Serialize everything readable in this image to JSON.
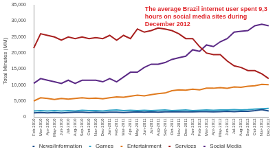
{
  "chart_data": {
    "type": "line",
    "annotation": "The average Brazil internet user spent 9,3 hours on social media sites during December 2012",
    "y_label": "Total Minutes (MM)",
    "categories": [
      "Feb-2010",
      "Mar-2010",
      "Apr-2010",
      "May-2010",
      "Jun-2010",
      "Jul-2010",
      "Aug-2010",
      "Sep-2010",
      "Oct-2010",
      "Nov-2010",
      "Dec-2010",
      "Jan-2011",
      "Feb-2011",
      "Mar-2011",
      "Apr-2011",
      "May-2011",
      "Jun-2011",
      "Jul-2011",
      "Aug-2011",
      "Sep-2011",
      "Oct-2011",
      "Nov-2011",
      "Dec-2011",
      "Jan-2012",
      "Feb-2012",
      "Mar-2012",
      "Apr-2012",
      "May-2012",
      "Jun-2012",
      "Jul-2012",
      "Aug-2012",
      "Sep-2012",
      "Oct-2012",
      "Nov-2012",
      "Dec-2012"
    ],
    "series": [
      {
        "name": "News/Information",
        "color": "#1f4e8c",
        "values": [
          1300,
          1400,
          1300,
          1400,
          1300,
          1400,
          1500,
          1500,
          1400,
          1500,
          1400,
          1500,
          1500,
          1400,
          1500,
          1600,
          1500,
          1600,
          1500,
          1600,
          1600,
          1700,
          1600,
          1600,
          1700,
          1700,
          1600,
          1700,
          1800,
          1700,
          1800,
          1800,
          2000,
          2300,
          1900
        ]
      },
      {
        "name": "Games",
        "color": "#2ea3c7",
        "values": [
          1900,
          2000,
          1900,
          2000,
          1900,
          2000,
          1900,
          2100,
          2000,
          2000,
          1900,
          2100,
          2200,
          2000,
          2100,
          2000,
          2100,
          2000,
          2100,
          2200,
          2000,
          2100,
          2200,
          2000,
          2100,
          2200,
          2100,
          2200,
          2200,
          2300,
          2200,
          2300,
          2500,
          2600,
          2700
        ]
      },
      {
        "name": "Entertainment",
        "color": "#e07b20",
        "values": [
          5000,
          6000,
          5800,
          5500,
          5800,
          5600,
          5800,
          6000,
          5800,
          5900,
          5700,
          6000,
          6300,
          6200,
          6500,
          6800,
          6600,
          7000,
          7300,
          7500,
          8200,
          8500,
          8400,
          8700,
          8500,
          9000,
          9000,
          9200,
          9000,
          9400,
          9300,
          9600,
          9800,
          10200,
          10100
        ]
      },
      {
        "name": "Services",
        "color": "#a8201f",
        "values": [
          21500,
          26000,
          25500,
          25000,
          24000,
          25000,
          24500,
          25000,
          24500,
          24800,
          24500,
          25500,
          24000,
          25500,
          24500,
          27500,
          26500,
          27000,
          27800,
          27500,
          27000,
          26000,
          24500,
          24500,
          22000,
          20000,
          19500,
          19500,
          17500,
          16000,
          15500,
          14500,
          14500,
          13500,
          12000
        ]
      },
      {
        "name": "Social Media",
        "color": "#5b2a86",
        "values": [
          10500,
          12000,
          11500,
          11000,
          10500,
          11500,
          10500,
          11500,
          11500,
          11500,
          11000,
          12000,
          11000,
          12500,
          14000,
          14000,
          15500,
          16500,
          16500,
          17000,
          18000,
          18500,
          19000,
          21000,
          20500,
          22500,
          22000,
          23500,
          24500,
          26500,
          26800,
          27000,
          28500,
          29000,
          28500
        ]
      }
    ],
    "ylim": [
      0,
      35000
    ],
    "yticks": [
      0,
      {
        "value": 5000,
        "label": "5,000"
      },
      {
        "value": 10000,
        "label": "10,000"
      },
      {
        "value": 15000,
        "label": "15,000"
      },
      {
        "value": 20000,
        "label": "20,000"
      },
      {
        "value": 25000,
        "label": "25,000"
      },
      {
        "value": 30000,
        "label": "30,000"
      },
      {
        "value": 35000,
        "label": "35,000"
      }
    ],
    "grid": false,
    "legend": "bottom"
  }
}
